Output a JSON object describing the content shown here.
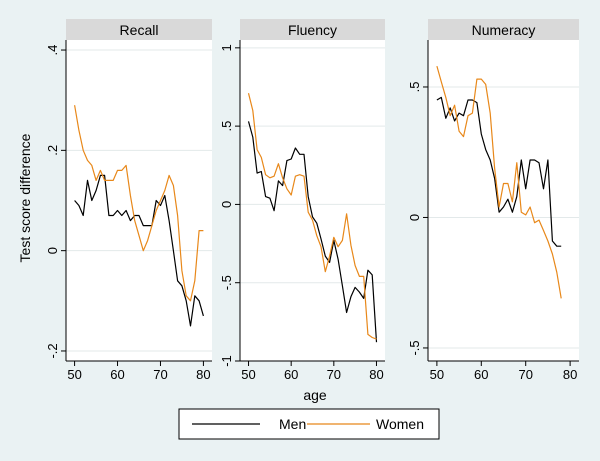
{
  "figure": {
    "y_axis_title": "Test score difference",
    "x_axis_title": "age",
    "legend_position": "bottom",
    "series_colors": {
      "Men": "#000000",
      "Women": "#e8881a"
    },
    "legend": [
      {
        "name": "Men",
        "color": "#000000"
      },
      {
        "name": "Women",
        "color": "#e8881a"
      }
    ]
  },
  "chart_data": [
    {
      "type": "line",
      "title": "Recall",
      "xlabel": "age",
      "ylabel": "Test score difference",
      "xlim": [
        48,
        82
      ],
      "ylim": [
        -0.22,
        0.42
      ],
      "x_ticks": [
        50,
        60,
        70,
        80
      ],
      "y_ticks": [
        -0.2,
        0,
        0.2,
        0.4
      ],
      "y_tick_labels": [
        "-.2",
        "0",
        ".2",
        ".4"
      ],
      "grid": true,
      "x": [
        50,
        51,
        52,
        53,
        54,
        55,
        56,
        57,
        58,
        59,
        60,
        61,
        62,
        63,
        64,
        65,
        66,
        67,
        68,
        69,
        70,
        71,
        72,
        73,
        74,
        75,
        76,
        77,
        78,
        79,
        80
      ],
      "series": [
        {
          "name": "Men",
          "values": [
            0.1,
            0.09,
            0.07,
            0.14,
            0.1,
            0.12,
            0.15,
            0.15,
            0.07,
            0.07,
            0.08,
            0.07,
            0.08,
            0.06,
            0.07,
            0.07,
            0.05,
            0.05,
            0.05,
            0.1,
            0.09,
            0.11,
            0.06,
            0.0,
            -0.06,
            -0.07,
            -0.1,
            -0.15,
            -0.09,
            -0.1,
            -0.13
          ]
        },
        {
          "name": "Women",
          "values": [
            0.29,
            0.24,
            0.2,
            0.18,
            0.17,
            0.14,
            0.16,
            0.14,
            0.14,
            0.14,
            0.16,
            0.16,
            0.17,
            0.11,
            0.06,
            0.03,
            0.0,
            0.02,
            0.05,
            0.08,
            0.1,
            0.12,
            0.15,
            0.13,
            0.07,
            -0.04,
            -0.09,
            -0.1,
            -0.06,
            0.04,
            0.04
          ]
        }
      ]
    },
    {
      "type": "line",
      "title": "Fluency",
      "xlabel": "age",
      "ylabel": "",
      "xlim": [
        48,
        82
      ],
      "ylim": [
        -1.0,
        1.05
      ],
      "x_ticks": [
        50,
        60,
        70,
        80
      ],
      "y_ticks": [
        -1,
        -0.5,
        0,
        0.5,
        1
      ],
      "y_tick_labels": [
        "-1",
        "-.5",
        "0",
        ".5",
        "1"
      ],
      "grid": true,
      "x": [
        50,
        51,
        52,
        53,
        54,
        55,
        56,
        57,
        58,
        59,
        60,
        61,
        62,
        63,
        64,
        65,
        66,
        67,
        68,
        69,
        70,
        71,
        72,
        73,
        74,
        75,
        76,
        77,
        78,
        79,
        80
      ],
      "series": [
        {
          "name": "Men",
          "values": [
            0.53,
            0.43,
            0.2,
            0.21,
            0.05,
            0.04,
            -0.04,
            0.15,
            0.12,
            0.28,
            0.29,
            0.36,
            0.32,
            0.32,
            0.05,
            -0.08,
            -0.12,
            -0.22,
            -0.33,
            -0.37,
            -0.23,
            -0.35,
            -0.52,
            -0.69,
            -0.59,
            -0.53,
            -0.56,
            -0.6,
            -0.42,
            -0.45,
            -0.88
          ]
        },
        {
          "name": "Women",
          "values": [
            0.71,
            0.6,
            0.35,
            0.3,
            0.19,
            0.17,
            0.18,
            0.26,
            0.17,
            0.1,
            0.06,
            0.18,
            0.19,
            0.18,
            -0.05,
            -0.1,
            -0.2,
            -0.27,
            -0.43,
            -0.33,
            -0.21,
            -0.27,
            -0.23,
            -0.06,
            -0.26,
            -0.39,
            -0.46,
            -0.46,
            -0.83,
            -0.85,
            -0.86
          ]
        }
      ]
    },
    {
      "type": "line",
      "title": "Numeracy",
      "xlabel": "age",
      "ylabel": "",
      "xlim": [
        48,
        82
      ],
      "ylim": [
        -0.55,
        0.68
      ],
      "x_ticks": [
        50,
        60,
        70,
        80
      ],
      "y_ticks": [
        -0.5,
        0,
        0.5
      ],
      "y_tick_labels": [
        "-.5",
        "0",
        ".5"
      ],
      "grid": true,
      "x": [
        50,
        51,
        52,
        53,
        54,
        55,
        56,
        57,
        58,
        59,
        60,
        61,
        62,
        63,
        64,
        65,
        66,
        67,
        68,
        69,
        70,
        71,
        72,
        73,
        74,
        75,
        76,
        77,
        78
      ],
      "series": [
        {
          "name": "Men",
          "values": [
            0.45,
            0.46,
            0.38,
            0.42,
            0.37,
            0.4,
            0.39,
            0.45,
            0.45,
            0.44,
            0.32,
            0.26,
            0.22,
            0.15,
            0.02,
            0.04,
            0.07,
            0.02,
            0.08,
            0.22,
            0.11,
            0.22,
            0.22,
            0.21,
            0.11,
            0.22,
            -0.09,
            -0.11,
            -0.11
          ]
        },
        {
          "name": "Women",
          "values": [
            0.58,
            0.52,
            0.46,
            0.39,
            0.43,
            0.33,
            0.31,
            0.39,
            0.4,
            0.53,
            0.53,
            0.51,
            0.4,
            0.19,
            0.04,
            0.13,
            0.13,
            0.06,
            0.21,
            0.02,
            0.01,
            0.04,
            -0.02,
            -0.01,
            -0.05,
            -0.09,
            -0.14,
            -0.21,
            -0.31
          ]
        }
      ]
    }
  ]
}
